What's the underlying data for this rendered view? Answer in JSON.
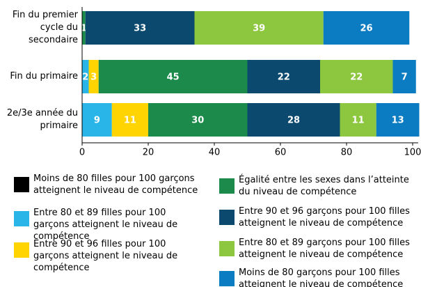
{
  "chart_data": {
    "type": "stacked-barh",
    "categories": [
      "Fin du premier cycle du secondaire",
      "Fin du primaire",
      "2e/3e année du primaire"
    ],
    "series": [
      {
        "name": "Moins de 80 filles pour 100 garçons atteignent le niveau de compétence",
        "color": "#000000",
        "values": [
          0,
          0,
          0
        ]
      },
      {
        "name": "Entre 80 et 89 filles pour 100 garçons atteignent le niveau de compétence",
        "color": "#29b5e8",
        "values": [
          0,
          2,
          9
        ]
      },
      {
        "name": "Entre 90 et 96 filles pour 100 garçons atteignent le niveau de compétence",
        "color": "#ffd400",
        "values": [
          0,
          3,
          11
        ]
      },
      {
        "name": "Égalité entre les sexes dans l’atteinte du niveau de compétence",
        "color": "#1b8a4a",
        "values": [
          1,
          45,
          30
        ]
      },
      {
        "name": "Entre 90 et 96 garçons pour 100 filles atteignent le niveau de compétence",
        "color": "#0b4a6e",
        "values": [
          33,
          22,
          28
        ]
      },
      {
        "name": "Entre 80 et 89 garçons pour 100 filles atteignent le niveau de compétence",
        "color": "#8dc63f",
        "values": [
          39,
          22,
          11
        ]
      },
      {
        "name": "Moins de 80 garçons pour 100 filles atteignent le niveau de compétence",
        "color": "#0b7cc1",
        "values": [
          26,
          7,
          13
        ]
      }
    ],
    "xlim": [
      0,
      100
    ],
    "xticks": [
      0,
      20,
      40,
      60,
      80,
      100
    ]
  }
}
